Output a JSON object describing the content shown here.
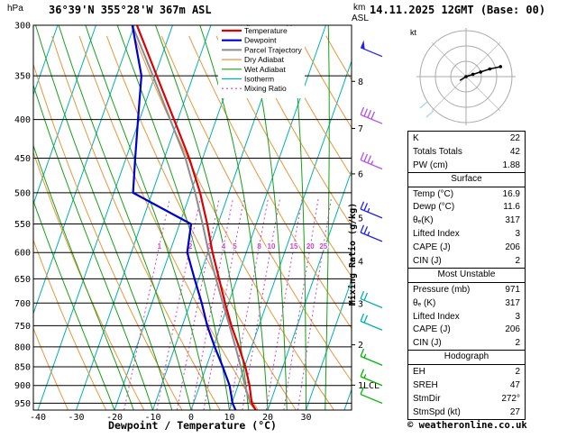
{
  "header": {
    "station_title": "36°39'N 355°28'W 367m ASL",
    "run_title": "14.11.2025 12GMT (Base: 00)",
    "pressure_unit_label": "hPa",
    "altitude_unit_label_1": "km",
    "altitude_unit_label_2": "ASL"
  },
  "axes": {
    "pressure_ticks": [
      300,
      350,
      400,
      450,
      500,
      550,
      600,
      650,
      700,
      750,
      800,
      850,
      900,
      950
    ],
    "temperature_ticks": [
      -40,
      -30,
      -20,
      -10,
      0,
      10,
      20,
      30
    ],
    "x_axis_label": "Dewpoint / Temperature (°C)",
    "altitude_tick_labels": [
      "8",
      "7",
      "6",
      "5",
      "4",
      "3",
      "2",
      "1LCL"
    ],
    "mixing_ratio_axis_label": "Mixing Ratio (g/kg)"
  },
  "legend": {
    "items": [
      {
        "label": "Temperature",
        "color_key": "temperature"
      },
      {
        "label": "Dewpoint",
        "color_key": "dewpoint"
      },
      {
        "label": "Parcel Trajectory",
        "color_key": "parcel"
      },
      {
        "label": "Dry Adiabat",
        "color_key": "dry_adiabat"
      },
      {
        "label": "Wet Adiabat",
        "color_key": "wet_adiabat"
      },
      {
        "label": "Isotherm",
        "color_key": "isotherm"
      },
      {
        "label": "Mixing Ratio",
        "color_key": "mixing_ratio"
      }
    ]
  },
  "colors": {
    "temperature": "#dd0000",
    "dewpoint": "#0000cc",
    "parcel": "#8c8c8c",
    "dry_adiabat": "#e8963c",
    "wet_adiabat": "#18a018",
    "isotherm": "#00b0b0",
    "mixing_ratio": "#cc44cc",
    "grid": "#000000",
    "hodograph_grid": "#aaaaaa"
  },
  "chart_data": {
    "type": "skewt-log-p",
    "pressure_range_hpa": [
      300,
      970
    ],
    "temperature_axis_range_c": [
      -45,
      35
    ],
    "temperature_profile": [
      [
        970,
        16.9
      ],
      [
        950,
        15.2
      ],
      [
        900,
        13.0
      ],
      [
        850,
        10.2
      ],
      [
        800,
        6.7
      ],
      [
        750,
        2.8
      ],
      [
        700,
        -0.9
      ],
      [
        650,
        -4.7
      ],
      [
        600,
        -8.8
      ],
      [
        550,
        -12.8
      ],
      [
        500,
        -17.5
      ],
      [
        450,
        -23.5
      ],
      [
        400,
        -31.0
      ],
      [
        350,
        -39.5
      ],
      [
        300,
        -49.3
      ]
    ],
    "dewpoint_profile": [
      [
        970,
        11.6
      ],
      [
        950,
        10.2
      ],
      [
        900,
        7.8
      ],
      [
        850,
        4.3
      ],
      [
        800,
        0.4
      ],
      [
        750,
        -3.5
      ],
      [
        700,
        -7.0
      ],
      [
        650,
        -11.1
      ],
      [
        600,
        -15.4
      ],
      [
        550,
        -17.0
      ],
      [
        500,
        -35.0
      ],
      [
        450,
        -37.6
      ],
      [
        400,
        -40.4
      ],
      [
        350,
        -43.5
      ],
      [
        300,
        -50.5
      ]
    ],
    "parcel_profile": [
      [
        970,
        16.9
      ],
      [
        950,
        14.8
      ],
      [
        900,
        11.8
      ],
      [
        850,
        9.0
      ],
      [
        800,
        5.8
      ],
      [
        750,
        2.3
      ],
      [
        700,
        -1.5
      ],
      [
        650,
        -5.5
      ],
      [
        600,
        -9.8
      ],
      [
        550,
        -14.0
      ],
      [
        500,
        -18.8
      ],
      [
        450,
        -24.5
      ],
      [
        400,
        -32.0
      ],
      [
        350,
        -40.5
      ],
      [
        300,
        -50.5
      ]
    ],
    "isotherm_step_c": 10,
    "dry_adiabat_step_c": 10,
    "wet_adiabat_step_c": 5,
    "mixing_ratio_lines_gkg": [
      1,
      2,
      3,
      4,
      5,
      8,
      10,
      15,
      20,
      25
    ]
  },
  "wind_barbs": [
    {
      "pressure": 950,
      "speed_kt": 10,
      "color": "#00b400"
    },
    {
      "pressure": 900,
      "speed_kt": 15,
      "color": "#00b400"
    },
    {
      "pressure": 846,
      "speed_kt": 15,
      "color": "#00b400"
    },
    {
      "pressure": 760,
      "speed_kt": 20,
      "color": "#00b0b0"
    },
    {
      "pressure": 710,
      "speed_kt": 20,
      "color": "#00b0b0"
    },
    {
      "pressure": 580,
      "speed_kt": 25,
      "color": "#2222ee"
    },
    {
      "pressure": 540,
      "speed_kt": 25,
      "color": "#2222ee"
    },
    {
      "pressure": 465,
      "speed_kt": 35,
      "color": "#b24fe8"
    },
    {
      "pressure": 405,
      "speed_kt": 40,
      "color": "#b24fe8"
    },
    {
      "pressure": 330,
      "speed_kt": 50,
      "color": "#2222ee"
    }
  ],
  "hodograph": {
    "unit_label": "kt",
    "ring_radii_kt": [
      20,
      40,
      60
    ],
    "trace_uv_kt": [
      [
        -8,
        -5
      ],
      [
        0,
        0
      ],
      [
        9,
        3
      ],
      [
        19,
        6
      ],
      [
        31,
        10
      ],
      [
        45,
        13
      ]
    ]
  },
  "table": {
    "sections": [
      {
        "header": null,
        "rows": [
          [
            "K",
            "22"
          ],
          [
            "Totals Totals",
            "42"
          ],
          [
            "PW (cm)",
            "1.88"
          ]
        ]
      },
      {
        "header": "Surface",
        "rows": [
          [
            "Temp (°C)",
            "16.9"
          ],
          [
            "Dewp (°C)",
            "11.6"
          ],
          [
            "θₑ(K)",
            "317"
          ],
          [
            "Lifted Index",
            "3"
          ],
          [
            "CAPE (J)",
            "206"
          ],
          [
            "CIN (J)",
            "2"
          ]
        ]
      },
      {
        "header": "Most Unstable",
        "rows": [
          [
            "Pressure (mb)",
            "971"
          ],
          [
            "θₑ (K)",
            "317"
          ],
          [
            "Lifted Index",
            "3"
          ],
          [
            "CAPE (J)",
            "206"
          ],
          [
            "CIN (J)",
            "2"
          ]
        ]
      },
      {
        "header": "Hodograph",
        "rows": [
          [
            "EH",
            "2"
          ],
          [
            "SREH",
            "47"
          ],
          [
            "StmDir",
            "272°"
          ],
          [
            "StmSpd (kt)",
            "27"
          ]
        ]
      }
    ]
  },
  "footer": {
    "credit": "© weatheronline.co.uk"
  }
}
